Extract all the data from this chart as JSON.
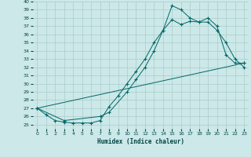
{
  "xlabel": "Humidex (Indice chaleur)",
  "bg_color": "#cce8e8",
  "grid_color": "#aacccc",
  "line_color": "#006666",
  "xlim": [
    -0.5,
    23.5
  ],
  "ylim": [
    24.5,
    40.0
  ],
  "xticks": [
    0,
    1,
    2,
    3,
    4,
    5,
    6,
    7,
    8,
    9,
    10,
    11,
    12,
    13,
    14,
    15,
    16,
    17,
    18,
    19,
    20,
    21,
    22,
    23
  ],
  "yticks": [
    25,
    26,
    27,
    28,
    29,
    30,
    31,
    32,
    33,
    34,
    35,
    36,
    37,
    38,
    39,
    40
  ],
  "line1_x": [
    0,
    1,
    2,
    3,
    4,
    5,
    6,
    7,
    8,
    9,
    10,
    11,
    12,
    13,
    14,
    15,
    16,
    17,
    18,
    19,
    20,
    21,
    22,
    23
  ],
  "line1_y": [
    27.0,
    26.2,
    25.5,
    25.3,
    25.2,
    25.2,
    25.2,
    25.5,
    27.2,
    28.5,
    30.0,
    31.5,
    33.0,
    35.0,
    36.5,
    37.8,
    37.2,
    37.6,
    37.5,
    38.0,
    37.0,
    33.5,
    32.5,
    32.5
  ],
  "line2_x": [
    0,
    3,
    7,
    8,
    10,
    11,
    12,
    13,
    14,
    15,
    16,
    17,
    18,
    19,
    20,
    21,
    22,
    23
  ],
  "line2_y": [
    27.0,
    25.5,
    26.0,
    26.5,
    29.0,
    30.5,
    32.0,
    34.0,
    36.5,
    39.5,
    39.0,
    38.0,
    37.5,
    37.5,
    36.5,
    35.0,
    33.0,
    32.0
  ],
  "line3_x": [
    0,
    23
  ],
  "line3_y": [
    27.0,
    32.5
  ]
}
